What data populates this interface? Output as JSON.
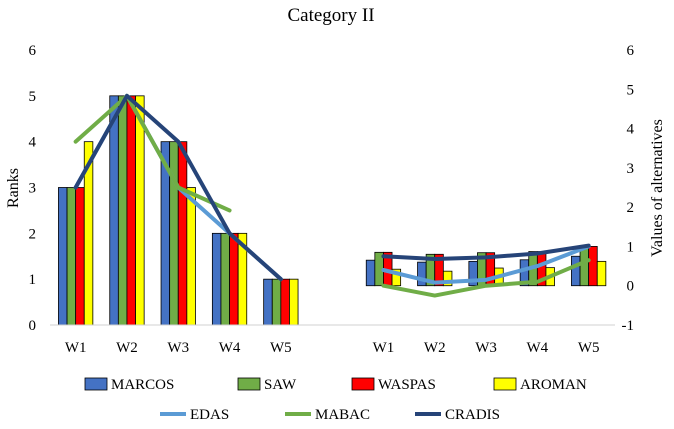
{
  "chart_data": {
    "type": "bar",
    "title": "Category II",
    "ylabel_left": "Ranks",
    "ylabel_right": "Values of alternatives",
    "ylim_left": [
      0,
      6
    ],
    "ylim_right": [
      -1,
      6
    ],
    "yticks_left": [
      "0",
      "1",
      "2",
      "3",
      "4",
      "5",
      "6"
    ],
    "yticks_right": [
      "-1",
      "0",
      "1",
      "2",
      "3",
      "4",
      "5",
      "6"
    ],
    "grid": false,
    "legend_position": "bottom",
    "rank_group": {
      "categories": [
        "W1",
        "W2",
        "W3",
        "W4",
        "W5"
      ],
      "bar_series": [
        {
          "name": "MARCOS",
          "color": "#4472C4",
          "values": [
            3,
            5,
            4,
            2,
            1
          ]
        },
        {
          "name": "SAW",
          "color": "#70AD47",
          "values": [
            3,
            5,
            4,
            2,
            1
          ]
        },
        {
          "name": "WASPAS",
          "color": "#FF0000",
          "values": [
            3,
            5,
            4,
            2,
            1
          ]
        },
        {
          "name": "AROMAN",
          "color": "#FFFF00",
          "values": [
            4,
            5,
            3,
            2,
            1
          ]
        }
      ],
      "line_series": [
        {
          "name": "EDAS",
          "color": "#5B9BD5",
          "values": [
            3,
            5,
            3,
            2,
            1
          ]
        },
        {
          "name": "MABAC",
          "color": "#70AD47",
          "values": [
            4,
            5,
            3,
            2.5,
            null
          ]
        },
        {
          "name": "CRADIS",
          "color": "#264478",
          "values": [
            3,
            5,
            4,
            2,
            1
          ]
        }
      ]
    },
    "value_group": {
      "categories": [
        "W1",
        "W2",
        "W3",
        "W4",
        "W5"
      ],
      "bar_series": [
        {
          "name": "MARCOS",
          "color": "#4472C4",
          "values": [
            0.65,
            0.6,
            0.62,
            0.66,
            0.75
          ]
        },
        {
          "name": "SAW",
          "color": "#70AD47",
          "values": [
            0.85,
            0.8,
            0.84,
            0.87,
            1.0
          ]
        },
        {
          "name": "WASPAS",
          "color": "#FF0000",
          "values": [
            0.85,
            0.8,
            0.84,
            0.87,
            1.0
          ]
        },
        {
          "name": "AROMAN",
          "color": "#FFFF00",
          "values": [
            0.42,
            0.37,
            0.45,
            0.46,
            0.62
          ]
        }
      ],
      "line_series": [
        {
          "name": "EDAS",
          "color": "#5B9BD5",
          "values": [
            0.4,
            0.08,
            0.15,
            0.5,
            1.0
          ]
        },
        {
          "name": "MABAC",
          "color": "#70AD47",
          "values": [
            0.0,
            -0.25,
            0.0,
            0.1,
            0.65
          ]
        },
        {
          "name": "CRADIS",
          "color": "#264478",
          "values": [
            0.75,
            0.68,
            0.72,
            0.82,
            1.02
          ]
        }
      ]
    },
    "legend": [
      {
        "name": "MARCOS",
        "kind": "bar",
        "color": "#4472C4"
      },
      {
        "name": "SAW",
        "kind": "bar",
        "color": "#70AD47"
      },
      {
        "name": "WASPAS",
        "kind": "bar",
        "color": "#FF0000"
      },
      {
        "name": "AROMAN",
        "kind": "bar",
        "color": "#FFFF00"
      },
      {
        "name": "EDAS",
        "kind": "line",
        "color": "#5B9BD5"
      },
      {
        "name": "MABAC",
        "kind": "line",
        "color": "#70AD47"
      },
      {
        "name": "CRADIS",
        "kind": "line",
        "color": "#264478"
      }
    ]
  }
}
